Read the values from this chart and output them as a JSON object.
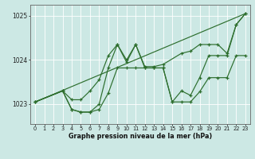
{
  "xlabel": "Graphe pression niveau de la mer (hPa)",
  "line_color": "#2d6e2d",
  "bg_color": "#cce8e4",
  "grid_color": "#ffffff",
  "ylim": [
    1022.55,
    1025.25
  ],
  "yticks": [
    1023,
    1024,
    1025
  ],
  "xticks": [
    0,
    1,
    2,
    3,
    4,
    5,
    6,
    7,
    8,
    9,
    10,
    11,
    12,
    13,
    14,
    15,
    16,
    17,
    18,
    19,
    20,
    21,
    22,
    23
  ],
  "trend_x": [
    0,
    23
  ],
  "trend_y": [
    1023.05,
    1025.05
  ],
  "s1_x": [
    0,
    3,
    4,
    5,
    6,
    7,
    8,
    9,
    10,
    11,
    12,
    13,
    14,
    16,
    17,
    18,
    19,
    20,
    21,
    22,
    23
  ],
  "s1_y": [
    1023.05,
    1023.3,
    1023.1,
    1023.1,
    1023.3,
    1023.55,
    1024.1,
    1024.35,
    1023.95,
    1024.35,
    1023.85,
    1023.85,
    1023.9,
    1024.15,
    1024.2,
    1024.35,
    1024.35,
    1024.35,
    1024.15,
    1024.8,
    1025.05
  ],
  "s2_x": [
    0,
    3,
    4,
    5,
    6,
    7,
    8,
    9,
    10,
    11,
    12,
    13,
    14,
    15,
    16,
    17,
    18,
    19,
    20,
    21,
    22,
    23
  ],
  "s2_y": [
    1023.05,
    1023.3,
    1022.88,
    1022.82,
    1022.82,
    1022.88,
    1023.25,
    1023.82,
    1023.82,
    1023.82,
    1023.82,
    1023.82,
    1023.82,
    1023.05,
    1023.05,
    1023.05,
    1023.28,
    1023.6,
    1023.6,
    1023.6,
    1024.1,
    1024.1
  ],
  "s3_x": [
    0,
    3,
    4,
    5,
    6,
    7,
    8,
    9,
    10,
    11,
    12,
    13,
    14,
    15,
    16,
    17,
    18,
    19,
    20,
    21,
    22,
    23
  ],
  "s3_y": [
    1023.05,
    1023.3,
    1022.88,
    1022.82,
    1022.82,
    1023.0,
    1023.82,
    1024.35,
    1024.0,
    1024.35,
    1023.82,
    1023.82,
    1023.82,
    1023.05,
    1023.3,
    1023.2,
    1023.6,
    1024.1,
    1024.1,
    1024.1,
    1024.8,
    1025.05
  ]
}
